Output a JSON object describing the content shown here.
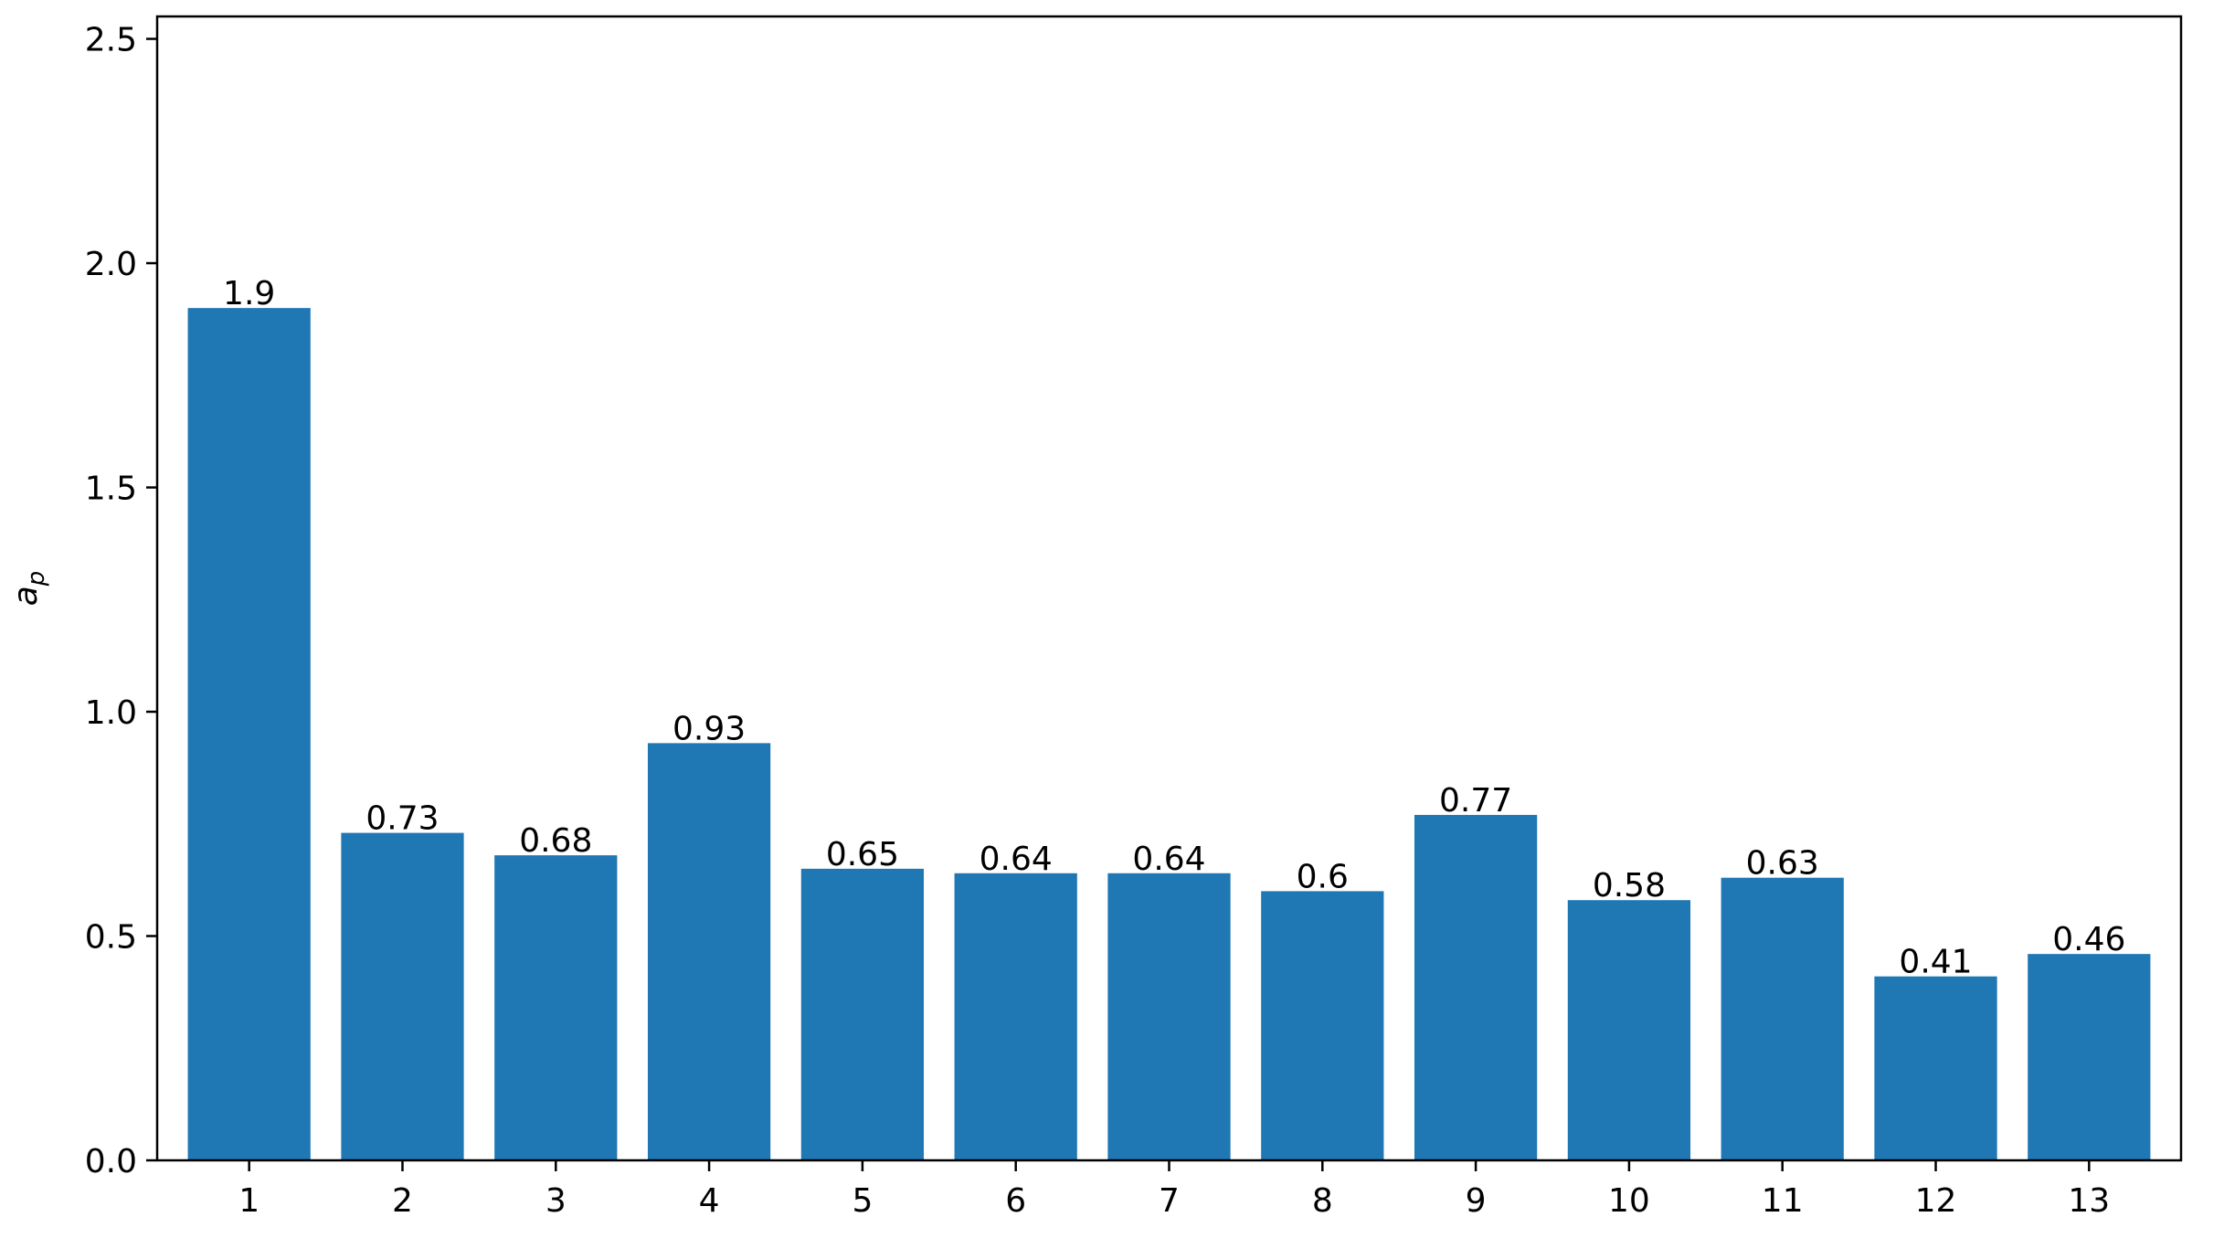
{
  "chart_data": {
    "type": "bar",
    "title": "",
    "xlabel": "",
    "ylabel": "a",
    "ylabel_subscript": "p",
    "categories": [
      "1",
      "2",
      "3",
      "4",
      "5",
      "6",
      "7",
      "8",
      "9",
      "10",
      "11",
      "12",
      "13"
    ],
    "values": [
      1.9,
      0.73,
      0.68,
      0.93,
      0.65,
      0.64,
      0.64,
      0.6,
      0.77,
      0.58,
      0.63,
      0.41,
      0.46
    ],
    "value_labels": [
      "1.9",
      "0.73",
      "0.68",
      "0.93",
      "0.65",
      "0.64",
      "0.64",
      "0.6",
      "0.77",
      "0.58",
      "0.63",
      "0.41",
      "0.46"
    ],
    "ylim": [
      0,
      2.55
    ],
    "yticks": [
      0.0,
      0.5,
      1.0,
      1.5,
      2.0,
      2.5
    ],
    "ytick_labels": [
      "0.0",
      "0.5",
      "1.0",
      "1.5",
      "2.0",
      "2.5"
    ],
    "grid": false,
    "legend": "none",
    "colors": {
      "bar": "#1f77b4",
      "axes": "#000000",
      "text": "#000000",
      "background": "#ffffff"
    }
  }
}
